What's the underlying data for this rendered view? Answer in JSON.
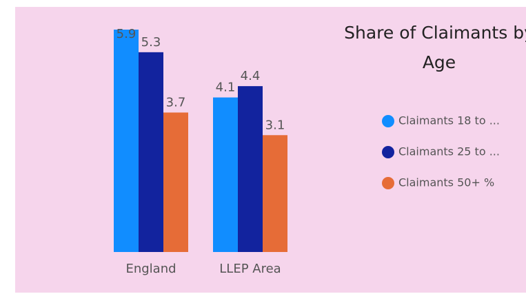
{
  "chart_data": {
    "type": "bar",
    "title": "Share of Claimants by Age",
    "categories": [
      "England",
      "LLEP Area"
    ],
    "series": [
      {
        "name": "Claimants 18 to ...",
        "color": "#118dff",
        "values": [
          5.9,
          4.1
        ]
      },
      {
        "name": "Claimants 25 to ...",
        "color": "#12239e",
        "values": [
          5.3,
          4.4
        ]
      },
      {
        "name": "Claimants 50+ %",
        "color": "#e66c37",
        "values": [
          3.7,
          3.1
        ]
      }
    ]
  }
}
